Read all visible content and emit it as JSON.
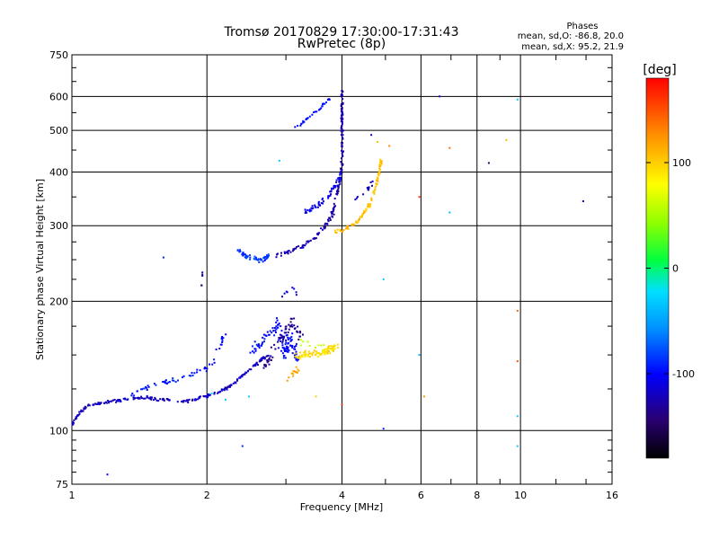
{
  "chart_data": {
    "type": "scatter",
    "title": "Tromsø 20170829 17:30:00-17:31:43",
    "subtitle": "RwPretec (8p)",
    "xlabel": "Frequency [MHz]",
    "ylabel": "Stationary phase Virtual Height [km]",
    "x_scale": "log",
    "y_scale": "log",
    "xlim": [
      1,
      16
    ],
    "ylim": [
      75,
      750
    ],
    "x_ticks": [
      {
        "value": 1,
        "label": "1"
      },
      {
        "value": 2,
        "label": "2"
      },
      {
        "value": 4,
        "label": "4"
      },
      {
        "value": 6,
        "label": "6"
      },
      {
        "value": 8,
        "label": "8"
      },
      {
        "value": 10,
        "label": "10"
      },
      {
        "value": 16,
        "label": "16"
      }
    ],
    "y_ticks": [
      {
        "value": 75,
        "label": "75"
      },
      {
        "value": 100,
        "label": "100"
      },
      {
        "value": 200,
        "label": "200"
      },
      {
        "value": 300,
        "label": "300"
      },
      {
        "value": 400,
        "label": "400"
      },
      {
        "value": 500,
        "label": "500"
      },
      {
        "value": 600,
        "label": "600"
      },
      {
        "value": 750,
        "label": "750"
      }
    ],
    "grid": true,
    "colorbar": {
      "title": "[deg]",
      "min": -180,
      "max": 180,
      "tick_values": [
        -100,
        0,
        100
      ],
      "tick_labels": [
        "-100",
        "0",
        "100"
      ]
    },
    "phase_stats": {
      "heading": "Phases",
      "line_o": "mean, sd,O: -86.8, 20.0",
      "line_x": "mean, sd,X:  95.2, 21.9"
    },
    "traces": [
      {
        "points": [
          [
            1.0,
            103
          ],
          [
            1.02,
            107
          ],
          [
            1.05,
            111
          ],
          [
            1.08,
            114
          ],
          [
            1.12,
            115
          ],
          [
            1.17,
            116
          ],
          [
            1.24,
            117
          ],
          [
            1.3,
            118
          ],
          [
            1.36,
            119
          ],
          [
            1.42,
            119
          ],
          [
            1.48,
            119
          ],
          [
            1.55,
            118
          ],
          [
            1.62,
            118
          ],
          [
            1.7,
            117
          ],
          [
            1.78,
            117
          ],
          [
            1.86,
            118
          ],
          [
            1.92,
            119
          ],
          [
            1.98,
            120
          ],
          [
            2.04,
            121
          ],
          [
            2.1,
            122
          ],
          [
            2.16,
            124
          ],
          [
            2.22,
            126
          ],
          [
            2.28,
            128
          ],
          [
            2.34,
            131
          ],
          [
            2.4,
            134
          ],
          [
            2.46,
            137
          ],
          [
            2.52,
            140
          ],
          [
            2.58,
            143
          ],
          [
            2.64,
            146
          ],
          [
            2.7,
            148
          ],
          [
            2.76,
            150
          ]
        ],
        "phase": -120,
        "count": 240,
        "spread": 0.012
      },
      {
        "points": [
          [
            1.35,
            122
          ],
          [
            1.45,
            125
          ],
          [
            1.55,
            128
          ],
          [
            1.65,
            130
          ],
          [
            1.75,
            132
          ],
          [
            1.85,
            135
          ],
          [
            1.95,
            138
          ],
          [
            2.02,
            142
          ],
          [
            2.08,
            146
          ]
        ],
        "phase": -95,
        "count": 50,
        "spread": 0.025
      },
      {
        "points": [
          [
            2.5,
            150
          ],
          [
            2.6,
            158
          ],
          [
            2.7,
            165
          ],
          [
            2.8,
            172
          ],
          [
            2.9,
            178
          ],
          [
            3.0,
            150
          ],
          [
            3.05,
            165
          ],
          [
            3.1,
            160
          ],
          [
            3.15,
            150
          ],
          [
            3.2,
            145
          ]
        ],
        "phase": -100,
        "count": 120,
        "spread": 0.045
      },
      {
        "points": [
          [
            2.7,
            140
          ],
          [
            2.8,
            155
          ],
          [
            2.9,
            160
          ],
          [
            3.0,
            170
          ],
          [
            3.05,
            180
          ],
          [
            3.1,
            175
          ],
          [
            3.2,
            170
          ],
          [
            3.25,
            160
          ]
        ],
        "phase": -135,
        "count": 60,
        "spread": 0.04
      },
      {
        "points": [
          [
            3.15,
            148
          ],
          [
            3.3,
            150
          ],
          [
            3.45,
            151
          ],
          [
            3.6,
            152
          ],
          [
            3.75,
            154
          ],
          [
            3.9,
            156
          ]
        ],
        "phase": 95,
        "count": 90,
        "spread": 0.03
      },
      {
        "points": [
          [
            3.0,
            132
          ],
          [
            3.1,
            136
          ],
          [
            3.2,
            140
          ]
        ],
        "phase": 120,
        "count": 14,
        "spread": 0.03
      },
      {
        "points": [
          [
            3.2,
            162
          ],
          [
            3.4,
            160
          ],
          [
            3.6,
            158
          ]
        ],
        "phase": 60,
        "count": 10,
        "spread": 0.04
      },
      {
        "points": [
          [
            2.35,
            262
          ],
          [
            2.45,
            255
          ],
          [
            2.55,
            252
          ],
          [
            2.65,
            250
          ],
          [
            2.75,
            255
          ]
        ],
        "phase": -85,
        "count": 55,
        "spread": 0.02
      },
      {
        "points": [
          [
            2.85,
            255
          ],
          [
            2.95,
            258
          ],
          [
            3.1,
            262
          ],
          [
            3.25,
            268
          ],
          [
            3.4,
            276
          ],
          [
            3.5,
            283
          ],
          [
            3.6,
            292
          ],
          [
            3.7,
            302
          ],
          [
            3.8,
            318
          ],
          [
            3.85,
            335
          ],
          [
            3.9,
            355
          ],
          [
            3.95,
            378
          ],
          [
            4.0,
            420
          ],
          [
            4.0,
            470
          ],
          [
            4.0,
            520
          ],
          [
            4.0,
            570
          ],
          [
            4.0,
            620
          ]
        ],
        "phase": -125,
        "count": 190,
        "spread": 0.015
      },
      {
        "points": [
          [
            3.3,
            320
          ],
          [
            3.45,
            330
          ],
          [
            3.6,
            340
          ],
          [
            3.75,
            355
          ],
          [
            3.85,
            370
          ],
          [
            3.95,
            385
          ],
          [
            4.0,
            395
          ]
        ],
        "phase": -110,
        "count": 60,
        "spread": 0.025
      },
      {
        "points": [
          [
            3.1,
            500
          ],
          [
            3.25,
            520
          ],
          [
            3.4,
            540
          ],
          [
            3.55,
            560
          ],
          [
            3.7,
            585
          ],
          [
            3.8,
            600
          ]
        ],
        "phase": -100,
        "count": 30,
        "spread": 0.01
      },
      {
        "points": [
          [
            3.85,
            290
          ],
          [
            4.0,
            292
          ],
          [
            4.15,
            298
          ],
          [
            4.3,
            305
          ],
          [
            4.45,
            318
          ],
          [
            4.6,
            335
          ],
          [
            4.7,
            355
          ],
          [
            4.78,
            380
          ],
          [
            4.85,
            405
          ],
          [
            4.9,
            430
          ]
        ],
        "phase": 105,
        "count": 110,
        "spread": 0.015
      },
      {
        "points": [
          [
            4.2,
            340
          ],
          [
            4.5,
            355
          ],
          [
            4.7,
            380
          ]
        ],
        "phase": -120,
        "count": 12,
        "spread": 0.02
      },
      {
        "points": [
          [
            2.1,
            150
          ],
          [
            2.15,
            160
          ],
          [
            2.2,
            170
          ]
        ],
        "phase": -105,
        "count": 12,
        "spread": 0.02
      },
      {
        "points": [
          [
            1.95,
            215
          ],
          [
            1.95,
            225
          ],
          [
            1.95,
            235
          ]
        ],
        "phase": -130,
        "count": 5,
        "spread": 0.01
      },
      {
        "points": [
          [
            2.95,
            205
          ],
          [
            3.1,
            215
          ],
          [
            3.2,
            205
          ]
        ],
        "phase": -115,
        "count": 8,
        "spread": 0.02
      }
    ],
    "points": [
      {
        "x": 1.2,
        "y": 79,
        "phase": -100
      },
      {
        "x": 1.6,
        "y": 253,
        "phase": -90
      },
      {
        "x": 2.4,
        "y": 92,
        "phase": -90
      },
      {
        "x": 2.48,
        "y": 120,
        "phase": -30
      },
      {
        "x": 2.9,
        "y": 425,
        "phase": -30
      },
      {
        "x": 4.65,
        "y": 488,
        "phase": -120
      },
      {
        "x": 4.8,
        "y": 470,
        "phase": 105
      },
      {
        "x": 5.1,
        "y": 460,
        "phase": 130
      },
      {
        "x": 4.0,
        "y": 115,
        "phase": 160
      },
      {
        "x": 4.95,
        "y": 225,
        "phase": -30
      },
      {
        "x": 4.95,
        "y": 101,
        "phase": -90
      },
      {
        "x": 5.95,
        "y": 350,
        "phase": 160
      },
      {
        "x": 5.95,
        "y": 150,
        "phase": -40
      },
      {
        "x": 6.1,
        "y": 120,
        "phase": 120
      },
      {
        "x": 6.6,
        "y": 600,
        "phase": -120
      },
      {
        "x": 6.95,
        "y": 322,
        "phase": -40
      },
      {
        "x": 6.95,
        "y": 455,
        "phase": 140
      },
      {
        "x": 8.5,
        "y": 420,
        "phase": -140
      },
      {
        "x": 9.3,
        "y": 475,
        "phase": 110
      },
      {
        "x": 9.85,
        "y": 590,
        "phase": -30
      },
      {
        "x": 9.85,
        "y": 190,
        "phase": 140
      },
      {
        "x": 9.85,
        "y": 145,
        "phase": 150
      },
      {
        "x": 9.85,
        "y": 108,
        "phase": -30
      },
      {
        "x": 9.85,
        "y": 92,
        "phase": -30
      },
      {
        "x": 13.8,
        "y": 342,
        "phase": -120
      },
      {
        "x": 2.05,
        "y": 122,
        "phase": -20
      },
      {
        "x": 2.2,
        "y": 118,
        "phase": -35
      },
      {
        "x": 3.5,
        "y": 120,
        "phase": 100
      }
    ]
  }
}
